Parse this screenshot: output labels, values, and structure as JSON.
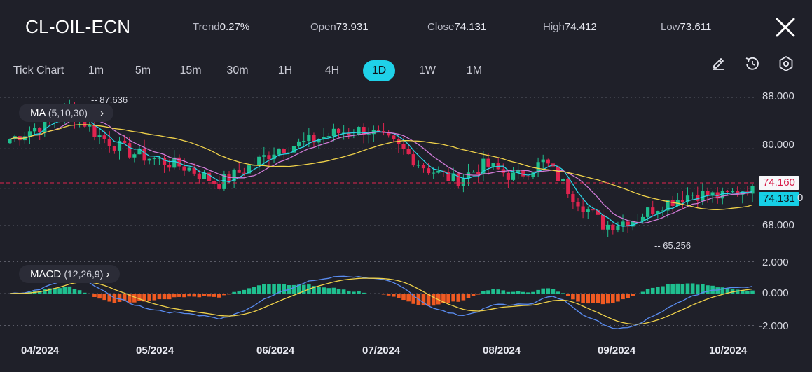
{
  "header": {
    "symbol": "CL-OIL-ECN",
    "trend_label": "Trend",
    "trend_value": "0.27%",
    "open_label": "Open",
    "open_value": "73.931",
    "close_label": "Close",
    "close_value": "74.131",
    "high_label": "High",
    "high_value": "74.412",
    "low_label": "Low",
    "low_value": "73.611",
    "close_icon": "close-icon"
  },
  "timeframes": [
    "Tick Chart",
    "1m",
    "5m",
    "15m",
    "30m",
    "1H",
    "4H",
    "1D",
    "1W",
    "1M"
  ],
  "active_timeframe": "1D",
  "tools": [
    "pencil-icon",
    "history-icon",
    "settings-icon"
  ],
  "indicators": {
    "ma_label": "MA",
    "ma_params": "(5,10,30)",
    "macd_label": "MACD",
    "macd_params": "(12,26,9)"
  },
  "price_axis": [
    "88.000",
    "80.000",
    "68.000"
  ],
  "macd_axis": [
    "2.000",
    "0.000",
    "-2.000"
  ],
  "price_tags": {
    "last": "74.160",
    "close": "74.131",
    "hidden_suffix": "0"
  },
  "annotations": {
    "high": "87.636",
    "low": "65.256"
  },
  "x_labels": [
    "04/2024",
    "05/2024",
    "06/2024",
    "07/2024",
    "08/2024",
    "09/2024",
    "10/2024"
  ],
  "colors": {
    "up": "#1fbf8f",
    "down": "#e0244f",
    "ma5": "#2ad4e6",
    "ma10": "#cf7ad6",
    "ma30": "#f0d24a",
    "macd_pos": "#1fbf8f",
    "macd_neg": "#f05a22",
    "macd_line": "#5a8cf0",
    "signal_line": "#f0d24a",
    "accent": "#1fd1e8"
  },
  "chart_data": {
    "type": "candlestick",
    "x": [
      "04/2024",
      "05/2024",
      "06/2024",
      "07/2024",
      "08/2024",
      "09/2024",
      "10/2024"
    ],
    "approx_closes": [
      81.5,
      83.5,
      86.2,
      82.0,
      79.5,
      78.2,
      77.0,
      74.5,
      77.0,
      80.0,
      81.0,
      82.5,
      83.0,
      80.5,
      77.0,
      75.0,
      77.5,
      75.5,
      78.0,
      72.5,
      68.0,
      69.0,
      71.5,
      73.0,
      72.5,
      74.2
    ],
    "price_range": [
      63,
      89
    ],
    "macd_range": [
      -2.5,
      2.5
    ],
    "high_marker": 87.636,
    "low_marker": 65.256,
    "last_price": 74.16,
    "close_price": 74.131
  }
}
